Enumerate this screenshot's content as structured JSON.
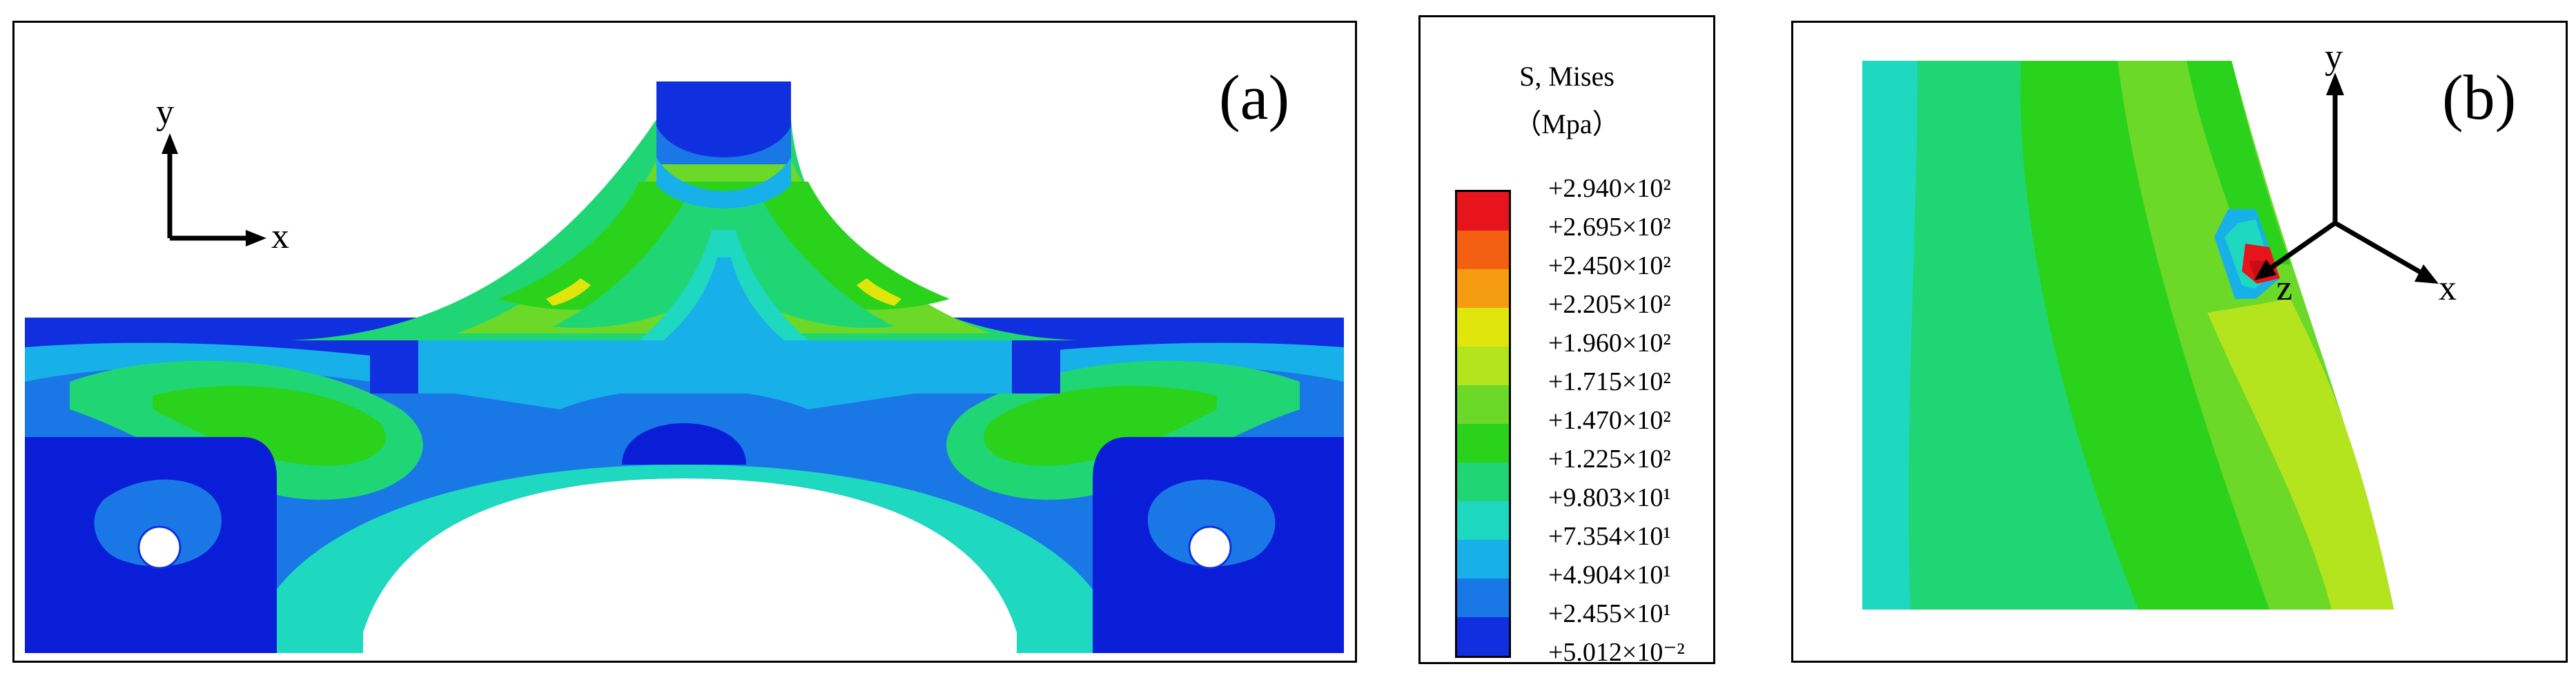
{
  "figure": {
    "panel_a": {
      "label": "(a)",
      "axis": {
        "x": "x",
        "y": "y"
      }
    },
    "panel_b": {
      "label": "(b)",
      "axis": {
        "x": "x",
        "y": "y",
        "z": "z"
      }
    }
  },
  "legend": {
    "title_line1": "S, Mises",
    "title_line2": "（Mpa）",
    "ticks": [
      "+2.940×10²",
      "+2.695×10²",
      "+2.450×10²",
      "+2.205×10²",
      "+1.960×10²",
      "+1.715×10²",
      "+1.470×10²",
      "+1.225×10²",
      "+9.803×10¹",
      "+7.354×10¹",
      "+4.904×10¹",
      "+2.455×10¹",
      "+5.012×10⁻²"
    ],
    "colors": [
      "#e8141c",
      "#f46012",
      "#f59c10",
      "#e0e60c",
      "#b4e41e",
      "#6cd828",
      "#2ad21c",
      "#20d674",
      "#1ed8c0",
      "#18b0e8",
      "#1a78e6",
      "#1030e0"
    ]
  },
  "palette": {
    "deep_blue": "#0a1ed8",
    "mid_blue": "#1a78e6",
    "light_blue": "#18b0e8",
    "cyan": "#1ed8c0",
    "teal_green": "#20d674",
    "green": "#2ad21c",
    "yellow_green": "#6cd828",
    "lime": "#b4e41e",
    "yellow": "#e0e60c"
  }
}
